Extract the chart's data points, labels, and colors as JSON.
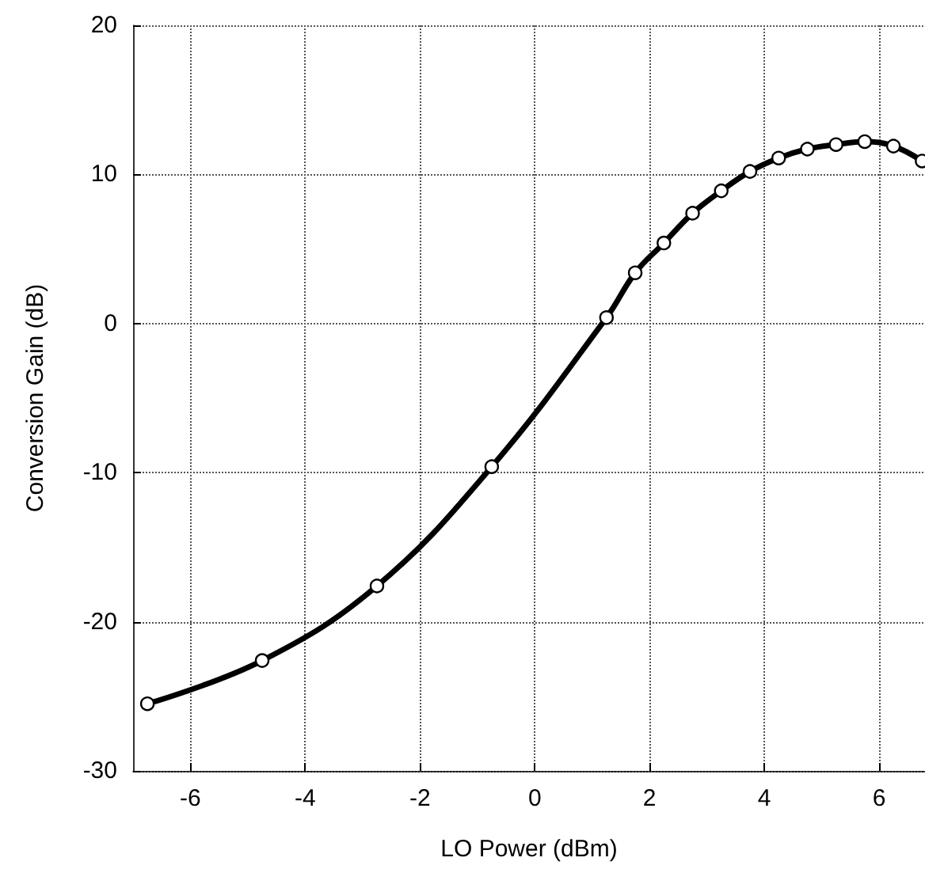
{
  "chart_data": {
    "type": "line",
    "xlabel": "LO Power (dBm)",
    "ylabel": "Conversion Gain (dB)",
    "x": [
      -6.75,
      -4.75,
      -2.75,
      -0.75,
      1.25,
      1.75,
      2.25,
      2.75,
      3.25,
      3.75,
      4.25,
      4.75,
      5.25,
      5.75,
      6.25,
      6.75
    ],
    "series": [
      {
        "color": "#000000",
        "values": [
          -25.5,
          -22.6,
          -17.6,
          -9.6,
          0.4,
          3.4,
          5.4,
          7.4,
          8.9,
          10.2,
          11.1,
          11.7,
          12.0,
          12.2,
          11.9,
          10.9
        ]
      }
    ],
    "xlim": [
      -7,
      6.8
    ],
    "xticks": [
      -6,
      -4,
      -2,
      0,
      2,
      4,
      6
    ],
    "ylim": [
      -30,
      20
    ],
    "yticks": [
      -30,
      -20,
      -10,
      0,
      10,
      20
    ],
    "grid": true,
    "marker": "circle",
    "line_style": "solid"
  }
}
